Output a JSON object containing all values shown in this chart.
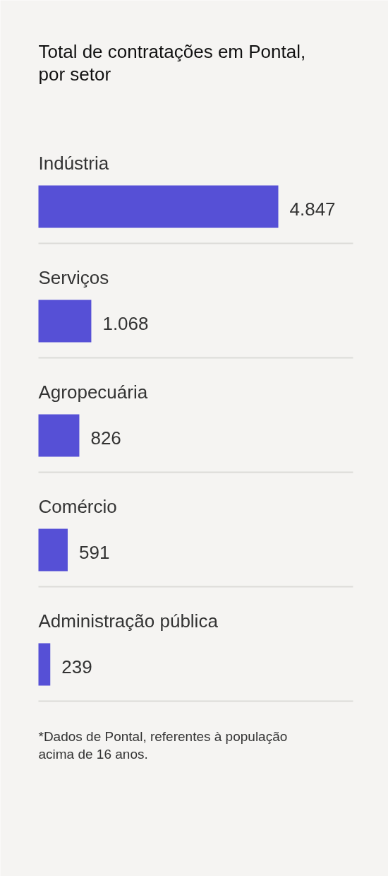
{
  "chart_data": {
    "type": "bar",
    "orientation": "horizontal",
    "title": "Total de contratações em Pontal, por setor",
    "categories": [
      "Indústria",
      "Serviços",
      "Agropecuária",
      "Comércio",
      "Administração pública"
    ],
    "values": [
      4847,
      1068,
      826,
      591,
      239
    ],
    "value_labels": [
      "4.847",
      "1.068",
      "826",
      "591",
      "239"
    ],
    "color": "#5650d6",
    "grid": "y",
    "annotations": [
      "*Dados de Pontal, referentes à população acima de 16 anos."
    ]
  }
}
